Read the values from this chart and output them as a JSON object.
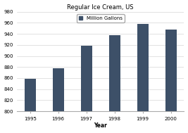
{
  "title": "Regular Ice Cream, US",
  "xlabel": "Year",
  "ylabel": "",
  "categories": [
    "1995",
    "1996",
    "1997",
    "1998",
    "1999",
    "2000"
  ],
  "values": [
    858,
    878,
    918,
    938,
    958,
    948
  ],
  "bar_color": "#3d5068",
  "ylim": [
    800,
    980
  ],
  "yticks": [
    800,
    820,
    840,
    860,
    880,
    900,
    920,
    940,
    960,
    980
  ],
  "legend_label": "Million Gallons",
  "title_fontsize": 6,
  "axis_fontsize": 5.5,
  "tick_fontsize": 5,
  "legend_fontsize": 5
}
